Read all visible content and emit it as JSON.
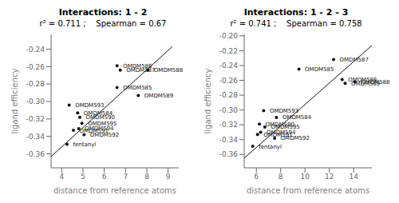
{
  "chart_data": [
    {
      "type": "scatter",
      "title": "Interactions: 1 - 2",
      "subtitle": "r² = 0.711 ;    Spearman = 0.67",
      "x_label": "distance from reference atoms",
      "y_label": "ligand efficiency",
      "series": [
        {
          "type": "scatter",
          "color": "#111111",
          "labels": [
            "OMDM586",
            "OMDM587",
            "OMDM588",
            "OMDM585",
            "OMDM589",
            "OMDM593",
            "OMDM584",
            "OMDM590",
            "OMDM595",
            "OMDM594",
            "OMDM591",
            "OMDM592",
            "fentanyl"
          ],
          "x": [
            6.6,
            6.75,
            8.05,
            6.6,
            7.6,
            4.35,
            4.75,
            4.85,
            4.95,
            4.8,
            4.55,
            5.05,
            4.25
          ],
          "values": [
            -0.259,
            -0.264,
            -0.264,
            -0.284,
            -0.293,
            -0.304,
            -0.313,
            -0.318,
            -0.325,
            -0.331,
            -0.333,
            -0.338,
            -0.349
          ]
        },
        {
          "type": "line",
          "color": "#111111",
          "x": [
            3.5,
            9.2
          ],
          "values": [
            -0.363,
            -0.237
          ]
        }
      ],
      "xlim": [
        3.5,
        9.5
      ],
      "ylim": [
        -0.376,
        -0.223
      ],
      "xticks": [
        4,
        5,
        6,
        7,
        8,
        9
      ],
      "yticks": [
        -0.24,
        -0.26,
        -0.28,
        {
          "value": -0.3,
          "label": "-0.30"
        },
        -0.32,
        -0.34,
        -0.36
      ]
    },
    {
      "type": "scatter",
      "title": "Interactions: 1 - 2 - 3",
      "subtitle": "r² = 0.741 ;    Spearman = 0.758",
      "x_label": "distance from reference atoms",
      "y_label": "ligand efficiency",
      "series": [
        {
          "type": "scatter",
          "color": "#111111",
          "labels": [
            "OMDM587",
            "OMDM585",
            "OMDM586",
            "OMDM589",
            "OMDM588",
            "OMDM593",
            "OMDM584",
            "OMDM590",
            "OMDM595",
            "OMDM594",
            "OMDM591",
            "OMDM592",
            "fentanyl"
          ],
          "x": [
            12.35,
            9.5,
            13.05,
            13.3,
            14.1,
            6.6,
            7.65,
            6.25,
            6.7,
            6.35,
            6.1,
            7.5,
            5.7
          ],
          "values": [
            -0.232,
            -0.245,
            -0.259,
            -0.264,
            -0.262,
            -0.301,
            -0.31,
            -0.319,
            -0.323,
            -0.33,
            -0.333,
            -0.338,
            -0.349
          ]
        },
        {
          "type": "line",
          "color": "#111111",
          "x": [
            5.0,
            15.5
          ],
          "values": [
            -0.365,
            -0.213
          ]
        }
      ],
      "xlim": [
        5.0,
        15.5
      ],
      "ylim": [
        -0.378,
        -0.198
      ],
      "xticks": [
        6,
        8,
        10,
        12,
        14
      ],
      "yticks": [
        {
          "value": -0.2,
          "label": "-0.20"
        },
        -0.22,
        -0.24,
        -0.26,
        -0.28,
        {
          "value": -0.3,
          "label": "-0.30"
        },
        -0.32,
        -0.34,
        -0.36
      ]
    }
  ]
}
